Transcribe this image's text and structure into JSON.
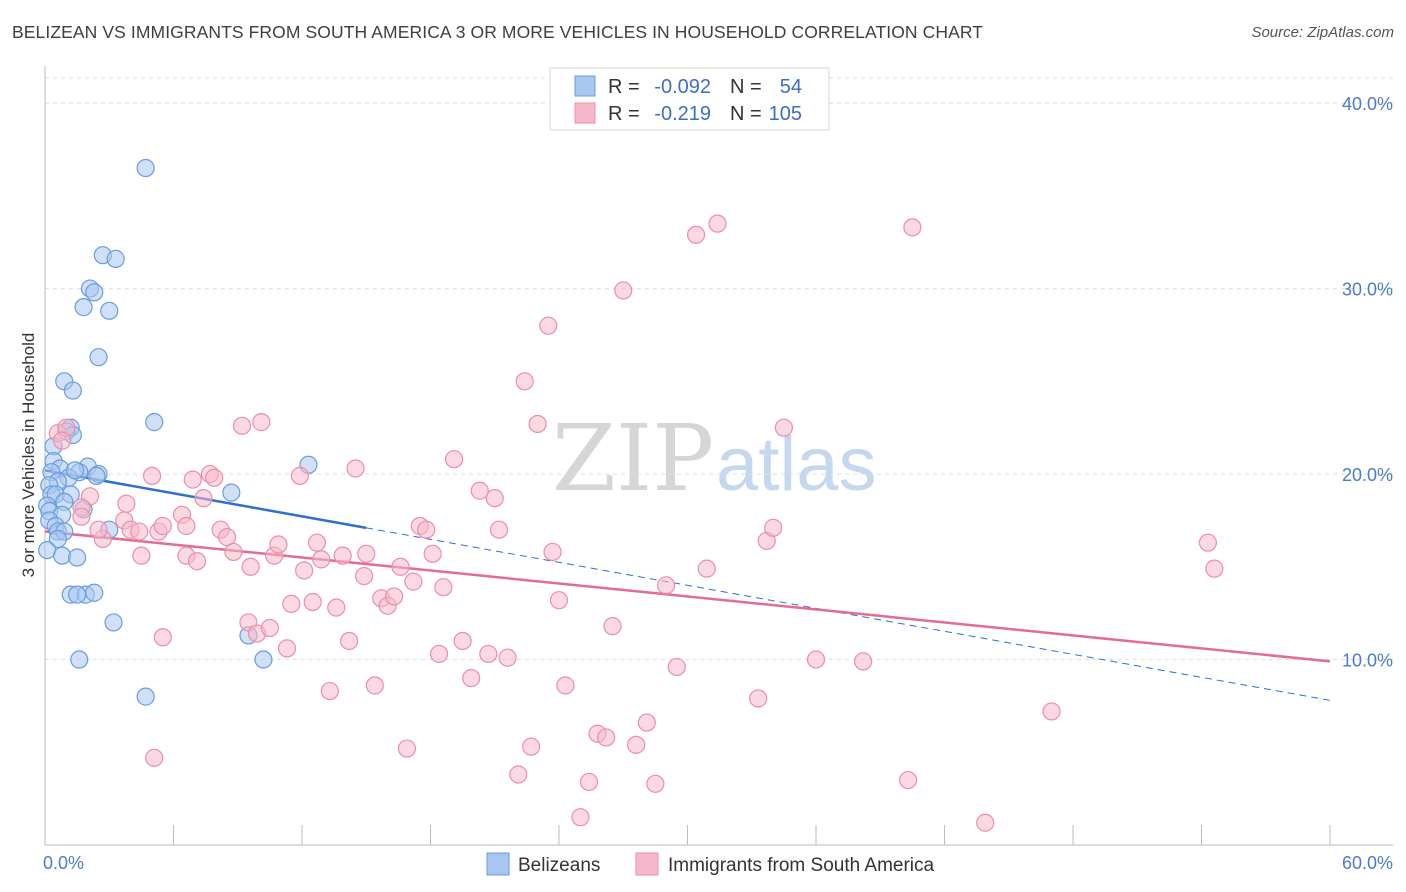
{
  "title": "BELIZEAN VS IMMIGRANTS FROM SOUTH AMERICA 3 OR MORE VEHICLES IN HOUSEHOLD CORRELATION CHART",
  "source": "Source: ZipAtlas.com",
  "watermark": {
    "zip": "ZIP",
    "atlas": "atlas"
  },
  "legend_top": {
    "r_label": "R =",
    "n_label": "N =",
    "rows": [
      {
        "r": "-0.092",
        "n": "54",
        "color": "#a9c6ee"
      },
      {
        "r": "-0.219",
        "n": "105",
        "color": "#f6b9cb"
      }
    ]
  },
  "legend_bottom": [
    {
      "label": "Belizeans",
      "color": "#a9c6ee"
    },
    {
      "label": "Immigrants from South America",
      "color": "#f6b9cb"
    }
  ],
  "colors": {
    "blue_fill": "#a9c6ee",
    "blue_stroke": "#6a9ddf",
    "blue_line": "#2f6fce",
    "pink_fill": "#f6b9cb",
    "pink_stroke": "#ec8eab",
    "pink_line": "#e46b93",
    "axis_text": "#4a7cc9",
    "grid": "#dddddd"
  },
  "chart_data": {
    "type": "scatter",
    "title": "BELIZEAN VS IMMIGRANTS FROM SOUTH AMERICA 3 OR MORE VEHICLES IN HOUSEHOLD CORRELATION CHART",
    "xlabel": "",
    "ylabel": "3 or more Vehicles in Household",
    "xlim": [
      0,
      60
    ],
    "ylim": [
      0,
      42
    ],
    "x_tick_labels": [
      "0.0%",
      "60.0%"
    ],
    "y_ticks": [
      10,
      20,
      30,
      40
    ],
    "y_tick_labels": [
      "10.0%",
      "20.0%",
      "30.0%",
      "40.0%"
    ],
    "grid": true,
    "legend_position": "top-center",
    "series": [
      {
        "name": "Belizeans",
        "r": -0.092,
        "n": 54,
        "points": [
          [
            4.7,
            36.5
          ],
          [
            2.7,
            31.8
          ],
          [
            3.3,
            31.6
          ],
          [
            2.1,
            30.0
          ],
          [
            2.3,
            29.8
          ],
          [
            1.8,
            29.0
          ],
          [
            3.0,
            28.8
          ],
          [
            2.5,
            26.3
          ],
          [
            0.9,
            25.0
          ],
          [
            1.3,
            24.5
          ],
          [
            5.1,
            22.8
          ],
          [
            1.2,
            22.5
          ],
          [
            1.0,
            22.3
          ],
          [
            1.3,
            22.1
          ],
          [
            0.4,
            21.5
          ],
          [
            0.4,
            20.7
          ],
          [
            12.3,
            20.5
          ],
          [
            0.7,
            20.3
          ],
          [
            2.0,
            20.4
          ],
          [
            1.6,
            20.1
          ],
          [
            0.3,
            20.1
          ],
          [
            2.5,
            20.0
          ],
          [
            1.1,
            19.8
          ],
          [
            0.6,
            19.6
          ],
          [
            0.2,
            19.4
          ],
          [
            8.7,
            19.0
          ],
          [
            0.3,
            18.9
          ],
          [
            0.5,
            18.9
          ],
          [
            1.2,
            18.9
          ],
          [
            0.9,
            18.5
          ],
          [
            0.1,
            18.3
          ],
          [
            0.2,
            18.0
          ],
          [
            1.8,
            18.1
          ],
          [
            0.8,
            17.8
          ],
          [
            0.2,
            17.5
          ],
          [
            3.0,
            17.0
          ],
          [
            0.5,
            17.2
          ],
          [
            0.6,
            16.9
          ],
          [
            0.9,
            16.9
          ],
          [
            0.6,
            16.5
          ],
          [
            0.1,
            15.9
          ],
          [
            0.8,
            15.6
          ],
          [
            1.5,
            15.5
          ],
          [
            1.2,
            13.5
          ],
          [
            1.9,
            13.5
          ],
          [
            2.3,
            13.6
          ],
          [
            1.5,
            13.5
          ],
          [
            3.2,
            12.0
          ],
          [
            9.5,
            11.3
          ],
          [
            10.2,
            10.0
          ],
          [
            1.6,
            10.0
          ],
          [
            4.7,
            8.0
          ],
          [
            1.4,
            20.2
          ],
          [
            2.4,
            19.9
          ]
        ],
        "trend": {
          "x": [
            0,
            15
          ],
          "y": [
            20.2,
            17.1
          ]
        },
        "trend_dashed": {
          "x": [
            15,
            60
          ],
          "y": [
            17.1,
            7.8
          ]
        }
      },
      {
        "name": "Immigrants from South America",
        "r": -0.219,
        "n": 105,
        "points": [
          [
            0.6,
            22.2
          ],
          [
            1.0,
            22.5
          ],
          [
            0.8,
            21.8
          ],
          [
            2.1,
            18.8
          ],
          [
            1.7,
            18.2
          ],
          [
            1.7,
            17.7
          ],
          [
            2.7,
            16.5
          ],
          [
            3.8,
            18.4
          ],
          [
            3.7,
            17.5
          ],
          [
            4.0,
            17.0
          ],
          [
            4.4,
            16.9
          ],
          [
            4.5,
            15.6
          ],
          [
            5.0,
            19.9
          ],
          [
            5.3,
            16.9
          ],
          [
            5.5,
            17.2
          ],
          [
            5.5,
            11.2
          ],
          [
            5.1,
            4.7
          ],
          [
            6.4,
            17.8
          ],
          [
            6.6,
            17.2
          ],
          [
            6.6,
            15.6
          ],
          [
            6.9,
            19.7
          ],
          [
            7.1,
            15.3
          ],
          [
            7.4,
            18.7
          ],
          [
            7.7,
            20.0
          ],
          [
            7.9,
            19.8
          ],
          [
            8.2,
            17.0
          ],
          [
            8.5,
            16.6
          ],
          [
            8.8,
            15.8
          ],
          [
            9.2,
            22.6
          ],
          [
            9.5,
            12.0
          ],
          [
            9.6,
            15.0
          ],
          [
            9.9,
            11.4
          ],
          [
            10.1,
            22.8
          ],
          [
            10.5,
            11.7
          ],
          [
            10.7,
            15.6
          ],
          [
            10.9,
            16.2
          ],
          [
            11.3,
            10.6
          ],
          [
            11.5,
            13.0
          ],
          [
            11.9,
            19.9
          ],
          [
            12.1,
            14.8
          ],
          [
            12.5,
            13.1
          ],
          [
            12.7,
            16.3
          ],
          [
            12.9,
            15.4
          ],
          [
            13.3,
            8.3
          ],
          [
            13.6,
            12.8
          ],
          [
            13.9,
            15.6
          ],
          [
            14.2,
            11.0
          ],
          [
            14.5,
            20.3
          ],
          [
            14.9,
            14.5
          ],
          [
            15.0,
            15.7
          ],
          [
            15.4,
            8.6
          ],
          [
            15.7,
            13.3
          ],
          [
            16.0,
            12.9
          ],
          [
            16.3,
            13.4
          ],
          [
            16.6,
            15.0
          ],
          [
            16.9,
            5.2
          ],
          [
            17.2,
            14.2
          ],
          [
            17.5,
            17.2
          ],
          [
            17.8,
            17.0
          ],
          [
            18.1,
            15.7
          ],
          [
            18.4,
            10.3
          ],
          [
            18.6,
            13.9
          ],
          [
            19.1,
            20.8
          ],
          [
            19.5,
            11.0
          ],
          [
            19.9,
            9.0
          ],
          [
            20.3,
            19.1
          ],
          [
            20.7,
            10.3
          ],
          [
            21.0,
            18.7
          ],
          [
            21.2,
            17.0
          ],
          [
            21.6,
            10.1
          ],
          [
            22.1,
            3.8
          ],
          [
            22.4,
            25.0
          ],
          [
            22.7,
            5.3
          ],
          [
            23.0,
            22.7
          ],
          [
            23.5,
            28.0
          ],
          [
            23.7,
            15.8
          ],
          [
            24.0,
            13.2
          ],
          [
            24.3,
            8.6
          ],
          [
            25.0,
            1.5
          ],
          [
            25.4,
            3.4
          ],
          [
            25.8,
            6.0
          ],
          [
            26.2,
            5.8
          ],
          [
            26.5,
            11.8
          ],
          [
            27.0,
            29.9
          ],
          [
            27.6,
            5.4
          ],
          [
            28.1,
            6.6
          ],
          [
            28.5,
            3.3
          ],
          [
            29.0,
            14.0
          ],
          [
            29.5,
            9.6
          ],
          [
            30.4,
            32.9
          ],
          [
            30.9,
            14.9
          ],
          [
            31.4,
            33.5
          ],
          [
            33.3,
            7.9
          ],
          [
            33.7,
            16.4
          ],
          [
            34.0,
            17.1
          ],
          [
            34.5,
            22.5
          ],
          [
            36.0,
            10.0
          ],
          [
            38.2,
            9.9
          ],
          [
            40.3,
            3.5
          ],
          [
            40.5,
            33.3
          ],
          [
            43.9,
            1.2
          ],
          [
            47.0,
            7.2
          ],
          [
            54.3,
            16.3
          ],
          [
            54.6,
            14.9
          ],
          [
            2.5,
            17.0
          ]
        ],
        "trend": {
          "x": [
            0,
            60
          ],
          "y": [
            16.9,
            9.9
          ]
        }
      }
    ]
  }
}
